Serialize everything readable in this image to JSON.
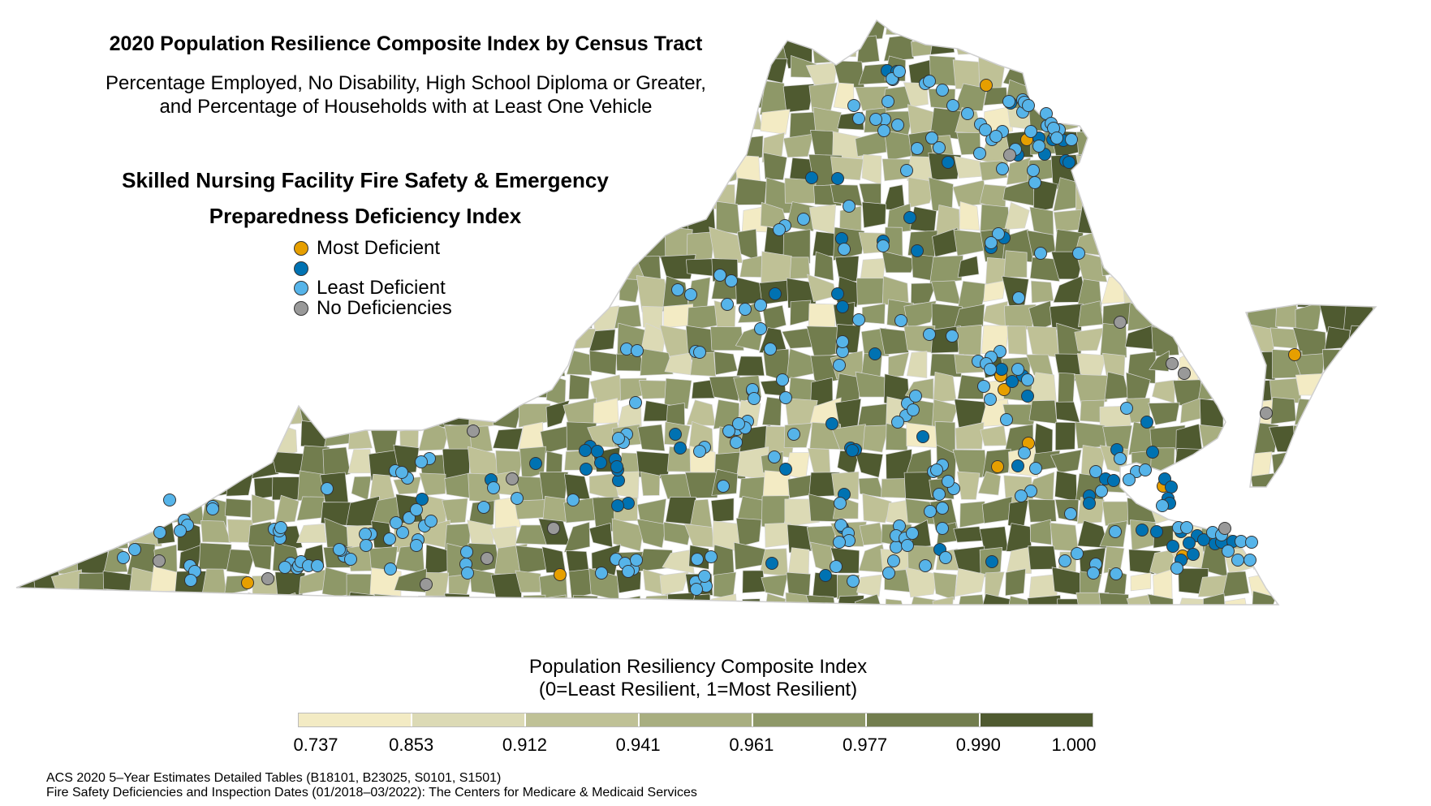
{
  "title": "2020 Population Resilience Composite Index by Census Tract",
  "subtitle_line1": "Percentage Employed, No Disability, High School Diploma or Greater,",
  "subtitle_line2": "and Percentage of Households with at Least One Vehicle",
  "legend": {
    "title_line1": "Skilled Nursing Facility Fire Safety & Emergency",
    "title_line2": "Preparedness Deficiency Index",
    "items": [
      {
        "label": "Most Deficient",
        "color": "#E69F00"
      },
      {
        "label": "",
        "color": "#0072B2"
      },
      {
        "label": "Least Deficient",
        "color": "#56B4E9"
      },
      {
        "label": "No Deficiencies",
        "color": "#999999"
      }
    ]
  },
  "scale": {
    "title_line1": "Population Resiliency Composite Index",
    "title_line2": "(0=Least Resilient, 1=Most Resilient)",
    "ticks": [
      "0.737",
      "0.853",
      "0.912",
      "0.941",
      "0.961",
      "0.977",
      "0.990",
      "1.000"
    ],
    "colors": [
      "#F3EBC4",
      "#DCDAB5",
      "#BFC196",
      "#A8AE80",
      "#8E9868",
      "#727D4E",
      "#4F5A30"
    ]
  },
  "source_line1": "ACS 2020 5–Year Estimates Detailed Tables (B18101, B23025, S0101, S1501)",
  "source_line2": "Fire Safety Deficiencies and Inspection Dates (01/2018–03/2022): The Centers for Medicare & Medicaid Services"
}
